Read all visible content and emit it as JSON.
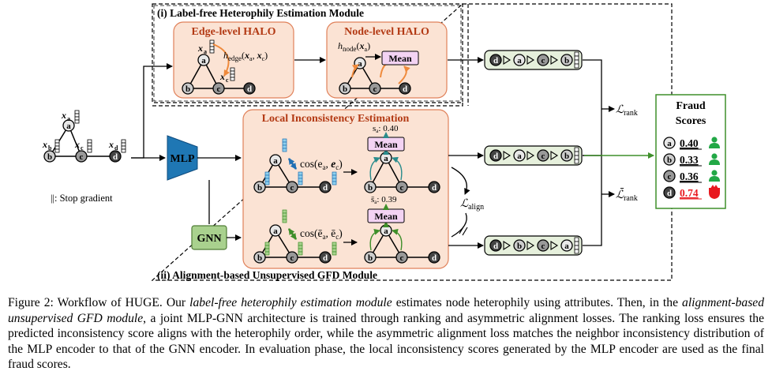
{
  "modules": {
    "label_free": {
      "title": "(i) Label-free Heterophily Estimation Module"
    },
    "alignment": {
      "title": "(ii) Alignment-based Unsupervised GFD Module"
    }
  },
  "halo": {
    "edge_title": "Edge-level HALO",
    "edge_formula_main": "h",
    "edge_formula_sub": "edge",
    "edge_formula_args": "(x",
    "node_title": "Node-level HALO",
    "node_formula_main": "h",
    "node_formula_sub": "node",
    "mean_label": "Mean"
  },
  "local_inconsistency": {
    "title": "Local Inconsistency Estimation",
    "cos_top": "cos(e",
    "cos_bottom": "cos(ē",
    "score_top": "s",
    "score_top_val": ": 0.40",
    "score_bottom": "s̄",
    "score_bottom_val": ": 0.39",
    "mean_label": "Mean"
  },
  "encoders": {
    "mlp": "MLP",
    "gnn": "GNN"
  },
  "input_graph": {
    "stop_gradient": "||: Stop gradient"
  },
  "nodes": {
    "a": "a",
    "b": "b",
    "c": "c",
    "d": "d"
  },
  "rankings": {
    "top": [
      "d",
      "a",
      "c",
      "b"
    ],
    "mid": [
      "d",
      "a",
      "c",
      "b"
    ],
    "bot": [
      "d",
      "b",
      "c",
      "a"
    ]
  },
  "losses": {
    "rank": "rank",
    "rank_bar": "rank",
    "align": "align"
  },
  "fraud_scores": {
    "title_line1": "Fraud",
    "title_line2": "Scores",
    "items": [
      {
        "node": "a",
        "score": "0.40",
        "color": "#000000",
        "icon_color": "#22a846"
      },
      {
        "node": "b",
        "score": "0.33",
        "color": "#000000",
        "icon_color": "#22a846"
      },
      {
        "node": "c",
        "score": "0.36",
        "color": "#000000",
        "icon_color": "#22a846"
      },
      {
        "node": "d",
        "score": "0.74",
        "color": "#e8181e",
        "icon_color": "#e8181e"
      }
    ]
  },
  "colors": {
    "salmon_fill": "#fbe3d4",
    "salmon_stroke": "#e0815a",
    "title_red": "#b33a14",
    "mlp_blue": "#1f77b4",
    "gnn_green": "#a9d18e",
    "rank_fill": "#e6f0dc",
    "mean_fill": "#f3d3f3",
    "arrow_orange": "#ef8a3c",
    "arrow_green": "#3f8f2a"
  },
  "caption": {
    "p1": "Figure 2: Workflow of HUGE. Our ",
    "p2": "label-free heterophily estimation module",
    "p3": " estimates node heterophily using attributes. Then, in the ",
    "p4": "alignment-based unsupervised GFD module",
    "p5": ", a joint MLP-GNN architecture is trained through ranking and asymmetric alignment losses. The ranking loss ensures the predicted inconsistency score aligns with the heterophily order, while the asymmetric alignment loss matches the neighbor inconsistency distribution of the MLP encoder to that of the GNN encoder. In evaluation phase, the local inconsistency scores generated by the MLP encoder are used as the final fraud scores."
  }
}
